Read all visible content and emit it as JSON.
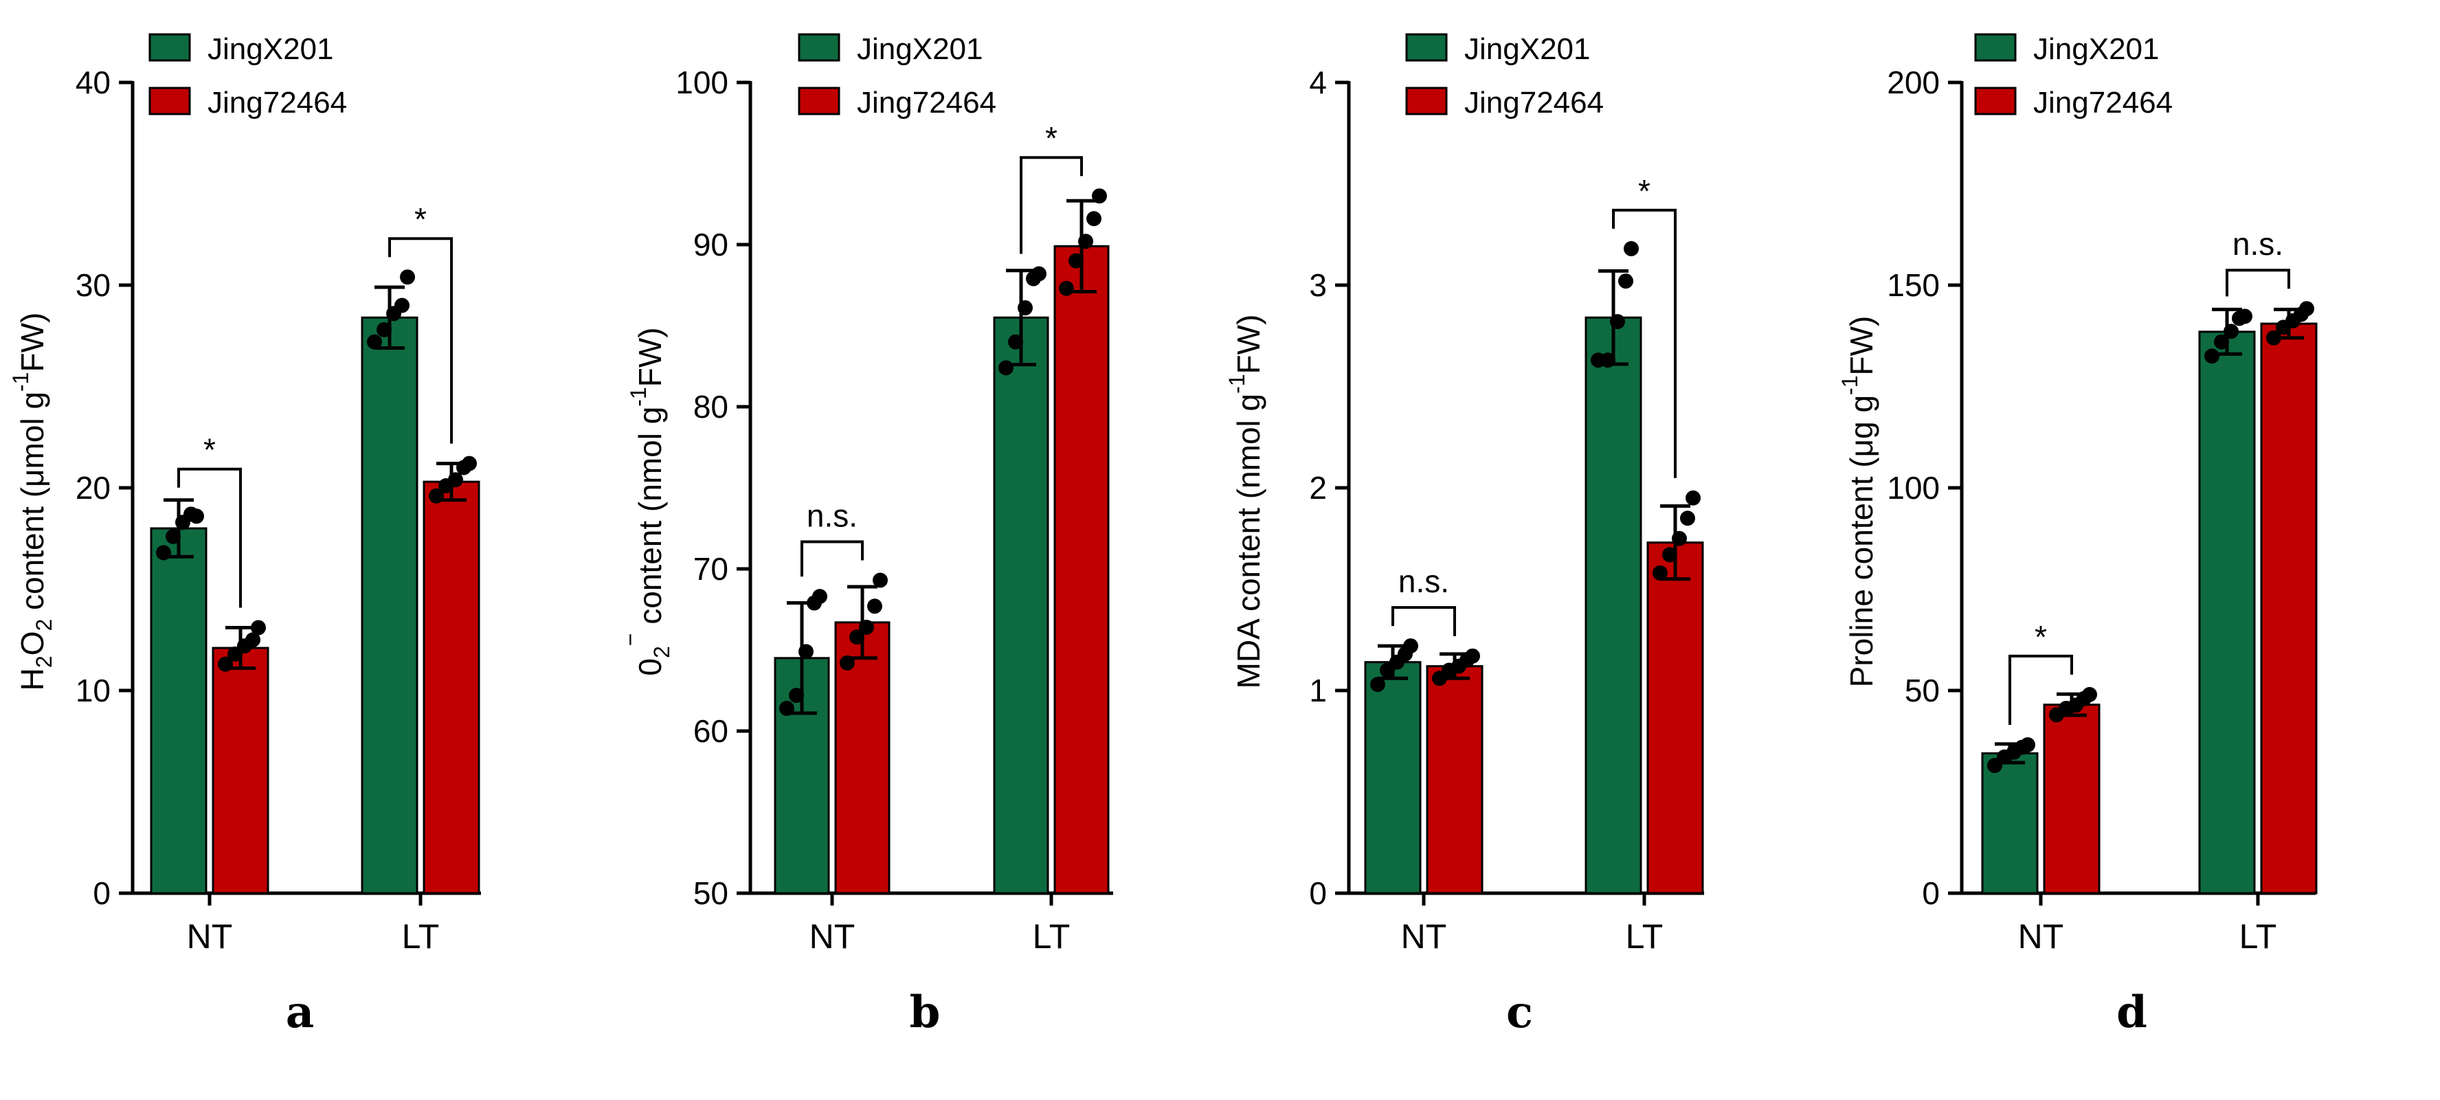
{
  "colors": {
    "JingX201": "#0e6b40",
    "Jing72464": "#c00000",
    "axis": "#000000"
  },
  "legend_labels": [
    "JingX201",
    "Jing72464"
  ],
  "chart_data": [
    {
      "type": "bar",
      "panel_label": "a",
      "ylabel": "H2O2 content (μmol g-1FW)",
      "ylabel_parts": {
        "pre": "H",
        "s1": "2",
        "mid": "O",
        "s2": "2",
        "post": " content (μmol g",
        "sup": "-1",
        "end": "FW)"
      },
      "ylim": [
        0,
        40
      ],
      "yticks": [
        "0",
        "10",
        "20",
        "30",
        "40"
      ],
      "categories": [
        "NT",
        "LT"
      ],
      "series": [
        {
          "name": "JingX201",
          "values": [
            18.0,
            28.4
          ],
          "errors": [
            1.4,
            1.5
          ],
          "points": [
            [
              16.8,
              17.6,
              18.3,
              18.7,
              18.6
            ],
            [
              27.2,
              27.8,
              28.6,
              29.0,
              30.4
            ]
          ]
        },
        {
          "name": "Jing72464",
          "values": [
            12.1,
            20.3
          ],
          "errors": [
            1.0,
            0.9
          ],
          "points": [
            [
              11.3,
              11.8,
              12.2,
              12.5,
              13.1
            ],
            [
              19.6,
              20.1,
              20.4,
              21.0,
              21.2
            ]
          ]
        }
      ],
      "significance": [
        "*",
        "*"
      ]
    },
    {
      "type": "bar",
      "panel_label": "b",
      "ylabel": "02− content (nmol g-1FW)",
      "ylabel_parts": {
        "pre": "0",
        "s1": "2",
        "sup1": "−",
        "post": " content (nmol g",
        "sup": "-1",
        "end": "FW)"
      },
      "ylim": [
        50,
        100
      ],
      "yticks": [
        "50",
        "60",
        "70",
        "80",
        "90",
        "100"
      ],
      "categories": [
        "NT",
        "LT"
      ],
      "series": [
        {
          "name": "JingX201",
          "values": [
            64.5,
            85.5
          ],
          "errors": [
            3.4,
            2.9
          ],
          "points": [
            [
              61.4,
              62.2,
              64.9,
              67.9,
              68.3
            ],
            [
              82.4,
              84.0,
              86.1,
              87.9,
              88.2
            ]
          ]
        },
        {
          "name": "Jing72464",
          "values": [
            66.7,
            89.9
          ],
          "errors": [
            2.2,
            2.8
          ],
          "points": [
            [
              64.2,
              65.8,
              66.4,
              67.7,
              69.3
            ],
            [
              87.3,
              89.0,
              90.2,
              91.6,
              93.0
            ]
          ]
        }
      ],
      "significance": [
        "n.s.",
        "*"
      ]
    },
    {
      "type": "bar",
      "panel_label": "c",
      "ylabel": "MDA content (nmol g-1FW)",
      "ylabel_parts": {
        "pre": "MDA content (nmol g",
        "sup": "-1",
        "end": "FW)"
      },
      "ylim": [
        0,
        4
      ],
      "yticks": [
        "0",
        "1",
        "2",
        "3",
        "4"
      ],
      "categories": [
        "NT",
        "LT"
      ],
      "series": [
        {
          "name": "JingX201",
          "values": [
            1.14,
            2.84
          ],
          "errors": [
            0.08,
            0.23
          ],
          "points": [
            [
              1.03,
              1.1,
              1.14,
              1.18,
              1.22
            ],
            [
              2.63,
              2.63,
              2.82,
              3.02,
              3.18
            ]
          ]
        },
        {
          "name": "Jing72464",
          "values": [
            1.12,
            1.73
          ],
          "errors": [
            0.06,
            0.18
          ],
          "points": [
            [
              1.06,
              1.1,
              1.12,
              1.15,
              1.17
            ],
            [
              1.58,
              1.67,
              1.75,
              1.85,
              1.95
            ]
          ]
        }
      ],
      "significance": [
        "n.s.",
        "*"
      ]
    },
    {
      "type": "bar",
      "panel_label": "d",
      "ylabel": "Proline content (μg g-1FW)",
      "ylabel_parts": {
        "pre": "Proline content (μg g",
        "sup": "-1",
        "end": "FW)"
      },
      "ylim": [
        0,
        200
      ],
      "yticks": [
        "0",
        "50",
        "100",
        "150",
        "200"
      ],
      "categories": [
        "NT",
        "LT"
      ],
      "series": [
        {
          "name": "JingX201",
          "values": [
            34.5,
            138.5
          ],
          "errors": [
            2.3,
            5.5
          ],
          "points": [
            [
              31.5,
              33.6,
              34.8,
              36.0,
              36.6
            ],
            [
              132.5,
              136.0,
              138.6,
              141.8,
              142.3
            ]
          ]
        },
        {
          "name": "Jing72464",
          "values": [
            46.5,
            140.5
          ],
          "errors": [
            2.6,
            3.5
          ],
          "points": [
            [
              44.0,
              45.6,
              46.4,
              48.0,
              49.0
            ],
            [
              137.0,
              139.6,
              141.2,
              142.8,
              144.2
            ]
          ]
        }
      ],
      "significance": [
        "*",
        "n.s."
      ]
    }
  ]
}
